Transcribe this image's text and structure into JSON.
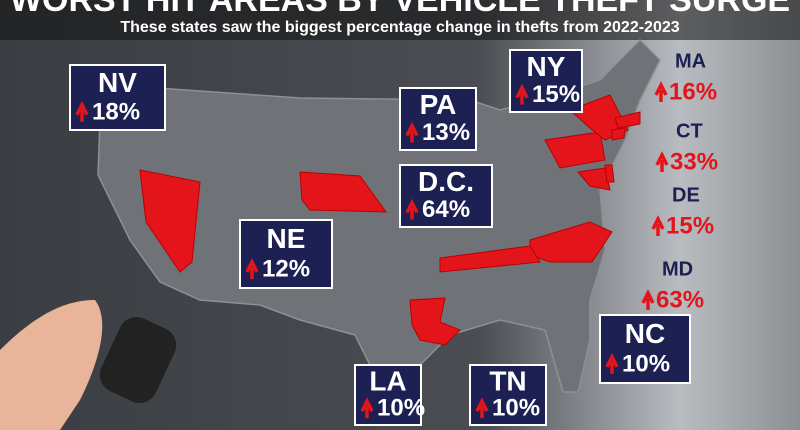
{
  "header": {
    "title": "WORST HIT AREAS BY VEHICLE THEFT SURGE",
    "subtitle": "These states saw the biggest percentage change in thefts from 2022-2023"
  },
  "states": [
    {
      "abbr": "NV",
      "change": "18%"
    },
    {
      "abbr": "NY",
      "change": "15%"
    },
    {
      "abbr": "PA",
      "change": "13%"
    },
    {
      "abbr": "D.C.",
      "change": "64%"
    },
    {
      "abbr": "NE",
      "change": "12%"
    },
    {
      "abbr": "LA",
      "change": "10%"
    },
    {
      "abbr": "TN",
      "change": "10%"
    },
    {
      "abbr": "NC",
      "change": "10%"
    },
    {
      "abbr": "MA",
      "change": "16%"
    },
    {
      "abbr": "CT",
      "change": "33%"
    },
    {
      "abbr": "DE",
      "change": "15%"
    },
    {
      "abbr": "MD",
      "change": "63%"
    }
  ]
}
